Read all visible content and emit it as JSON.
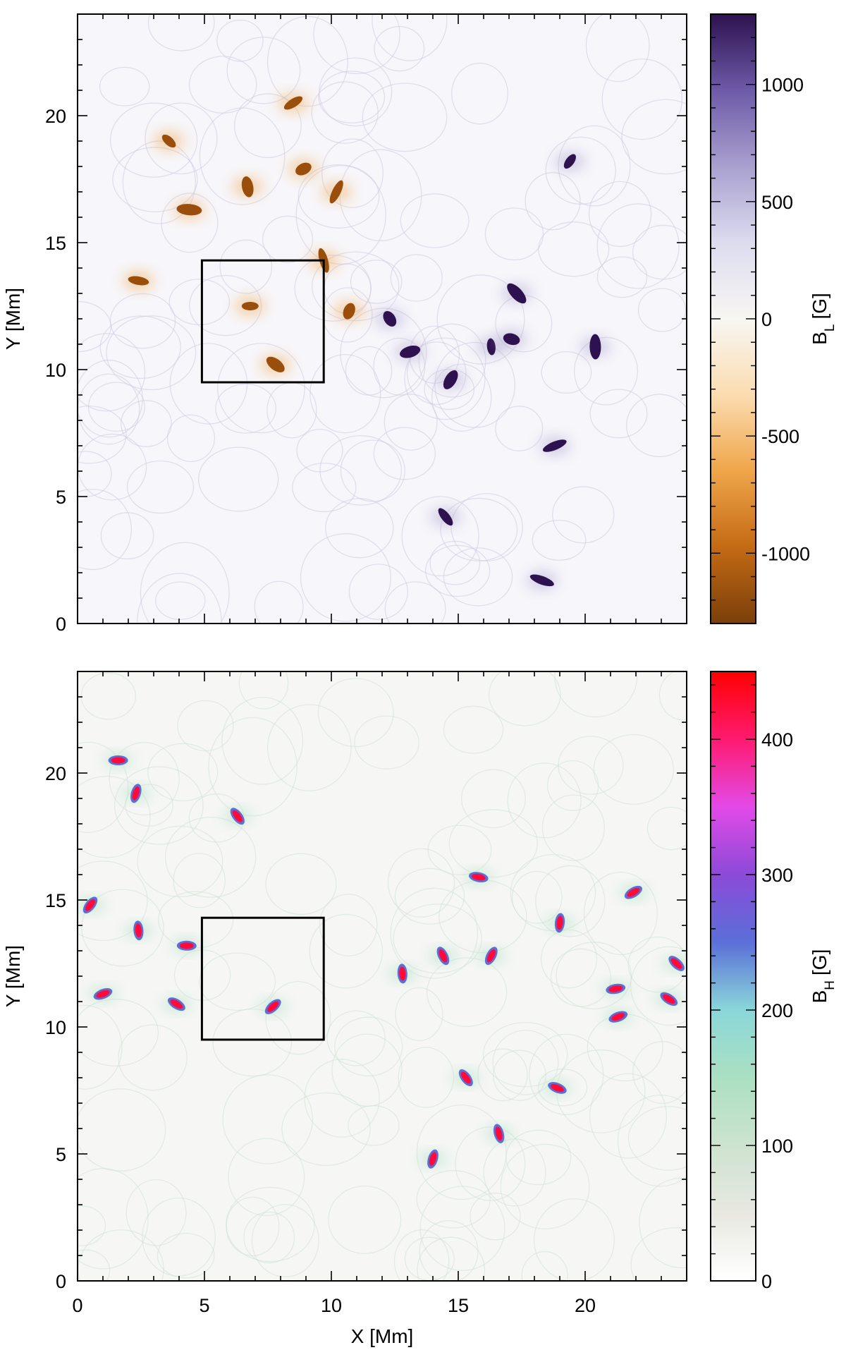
{
  "chart_data": [
    {
      "type": "heatmap",
      "panel": "top",
      "xlabel": "",
      "ylabel": "Y [Mm]",
      "xlim": [
        0,
        24
      ],
      "ylim": [
        0,
        24
      ],
      "xticks": [],
      "yticks": [
        "0",
        "5",
        "10",
        "15",
        "20"
      ],
      "box": {
        "x": [
          4.9,
          9.7
        ],
        "y": [
          9.5,
          14.3
        ]
      },
      "colorbar": {
        "label": "B",
        "label_sub": "L",
        "unit": "[G]",
        "min": -1300,
        "max": 1300,
        "ticks": [
          "1000",
          "500",
          "0",
          "-500",
          "-1000"
        ],
        "colors": [
          "#7a3f0a",
          "#c46a15",
          "#efa54a",
          "#fbdcb0",
          "#f8f6f3",
          "#dcdcef",
          "#a9a0cf",
          "#6d5aa8",
          "#2e1250"
        ]
      },
      "features": [
        {
          "sign": "neg",
          "x": 6.8,
          "y": 12.5
        },
        {
          "sign": "neg",
          "x": 7.8,
          "y": 10.2
        },
        {
          "sign": "neg",
          "x": 9.7,
          "y": 14.3
        },
        {
          "sign": "neg",
          "x": 10.7,
          "y": 12.3
        },
        {
          "sign": "neg",
          "x": 8.5,
          "y": 20.5
        },
        {
          "sign": "neg",
          "x": 4.4,
          "y": 16.3
        },
        {
          "sign": "neg",
          "x": 3.6,
          "y": 19.0
        },
        {
          "sign": "neg",
          "x": 6.7,
          "y": 17.2
        },
        {
          "sign": "neg",
          "x": 10.2,
          "y": 17.0
        },
        {
          "sign": "neg",
          "x": 8.9,
          "y": 17.9
        },
        {
          "sign": "neg",
          "x": 2.4,
          "y": 13.5
        },
        {
          "sign": "pos",
          "x": 17.3,
          "y": 13.0
        },
        {
          "sign": "pos",
          "x": 16.3,
          "y": 10.9
        },
        {
          "sign": "pos",
          "x": 14.7,
          "y": 9.6
        },
        {
          "sign": "pos",
          "x": 18.8,
          "y": 7.0
        },
        {
          "sign": "pos",
          "x": 17.1,
          "y": 11.2
        },
        {
          "sign": "pos",
          "x": 14.5,
          "y": 4.2
        },
        {
          "sign": "pos",
          "x": 20.4,
          "y": 10.9
        },
        {
          "sign": "pos",
          "x": 19.4,
          "y": 18.2
        },
        {
          "sign": "pos",
          "x": 13.1,
          "y": 10.7
        },
        {
          "sign": "pos",
          "x": 18.3,
          "y": 1.7
        },
        {
          "sign": "pos",
          "x": 12.3,
          "y": 12.0
        }
      ]
    },
    {
      "type": "heatmap",
      "panel": "bottom",
      "xlabel": "X [Mm]",
      "ylabel": "Y [Mm]",
      "xlim": [
        0,
        24
      ],
      "ylim": [
        0,
        24
      ],
      "xticks": [
        "0",
        "5",
        "10",
        "15",
        "20"
      ],
      "yticks": [
        "0",
        "5",
        "10",
        "15",
        "20"
      ],
      "box": {
        "x": [
          4.9,
          9.7
        ],
        "y": [
          9.5,
          14.3
        ]
      },
      "colorbar": {
        "label": "B",
        "label_sub": "H",
        "unit": "[G]",
        "min": 0,
        "max": 450,
        "ticks": [
          "400",
          "300",
          "200",
          "100",
          "0"
        ],
        "colors": [
          "#ffffff",
          "#e8e8e1",
          "#cde3cf",
          "#abe0c2",
          "#8ad7d9",
          "#5b6fd8",
          "#8c4ad8",
          "#e24ae8",
          "#ff1a70",
          "#ff0000"
        ]
      },
      "features": [
        {
          "x": 1.6,
          "y": 20.5
        },
        {
          "x": 6.3,
          "y": 18.3
        },
        {
          "x": 2.3,
          "y": 19.2
        },
        {
          "x": 1.0,
          "y": 11.3
        },
        {
          "x": 3.9,
          "y": 10.9
        },
        {
          "x": 2.4,
          "y": 13.8
        },
        {
          "x": 7.7,
          "y": 10.8
        },
        {
          "x": 15.8,
          "y": 15.9
        },
        {
          "x": 14.4,
          "y": 12.8
        },
        {
          "x": 16.3,
          "y": 12.8
        },
        {
          "x": 21.2,
          "y": 11.5
        },
        {
          "x": 23.6,
          "y": 12.5
        },
        {
          "x": 19.0,
          "y": 14.1
        },
        {
          "x": 21.9,
          "y": 15.3
        },
        {
          "x": 18.9,
          "y": 7.6
        },
        {
          "x": 16.6,
          "y": 5.8
        },
        {
          "x": 0.5,
          "y": 14.8
        },
        {
          "x": 4.3,
          "y": 13.2
        },
        {
          "x": 15.3,
          "y": 8.0
        },
        {
          "x": 14.0,
          "y": 4.8
        },
        {
          "x": 21.3,
          "y": 10.4
        },
        {
          "x": 23.3,
          "y": 11.1
        },
        {
          "x": 12.8,
          "y": 12.1
        }
      ]
    }
  ]
}
